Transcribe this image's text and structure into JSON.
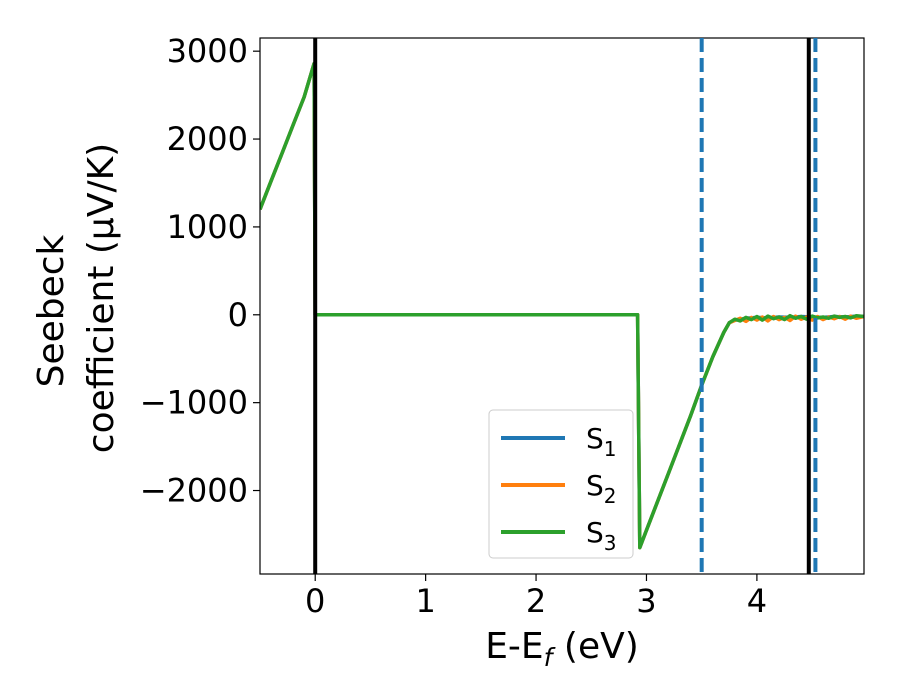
{
  "chart_data": {
    "type": "line",
    "title": "",
    "xlabel_parts": {
      "main": "E-E",
      "sub": "f",
      "tail": " (eV)"
    },
    "ylabel_lines": [
      "Seebeck",
      "coefficient  (μV/K)"
    ],
    "xlim": [
      -0.5,
      4.97
    ],
    "ylim": [
      -2950,
      3150
    ],
    "xticks": [
      0,
      1,
      2,
      3,
      4
    ],
    "xtick_labels": [
      "0",
      "1",
      "2",
      "3",
      "4"
    ],
    "yticks": [
      -2000,
      -1000,
      0,
      1000,
      2000,
      3000
    ],
    "ytick_labels": [
      "−2000",
      "−1000",
      "0",
      "1000",
      "2000",
      "3000"
    ],
    "grid": false,
    "legend_position": "lower-right",
    "series": [
      {
        "name": "S",
        "name_sub": "1",
        "color": "#1f77b4",
        "x": [
          -0.5,
          -0.4,
          -0.3,
          -0.2,
          -0.1,
          -0.01,
          0.0,
          0.2,
          1.0,
          2.0,
          2.92,
          2.94,
          3.0,
          3.2,
          3.4,
          3.5,
          3.6,
          3.7,
          3.75,
          3.8,
          3.9,
          4.0,
          4.1,
          4.2,
          4.3,
          4.4,
          4.5,
          4.6,
          4.7,
          4.8,
          4.9,
          4.97
        ],
        "y": [
          1200,
          1520,
          1840,
          2160,
          2480,
          2860,
          0,
          0,
          0,
          0,
          0,
          -2650,
          -2450,
          -1800,
          -1150,
          -800,
          -480,
          -200,
          -90,
          -60,
          -40,
          -30,
          -35,
          -25,
          -30,
          -20,
          -25,
          -30,
          -20,
          -25,
          -15,
          -20
        ]
      },
      {
        "name": "S",
        "name_sub": "2",
        "color": "#ff7f0e",
        "x": [
          -0.5,
          -0.4,
          -0.3,
          -0.2,
          -0.1,
          -0.01,
          0.0,
          0.2,
          1.0,
          2.0,
          2.92,
          2.94,
          3.0,
          3.2,
          3.4,
          3.5,
          3.6,
          3.7,
          3.75,
          3.8,
          3.85,
          3.9,
          3.95,
          4.0,
          4.05,
          4.1,
          4.15,
          4.2,
          4.25,
          4.3,
          4.35,
          4.4,
          4.45,
          4.5,
          4.55,
          4.6,
          4.65,
          4.7,
          4.75,
          4.8,
          4.85,
          4.9,
          4.97
        ],
        "y": [
          1200,
          1520,
          1840,
          2160,
          2480,
          2860,
          0,
          0,
          0,
          0,
          0,
          -2650,
          -2450,
          -1800,
          -1150,
          -800,
          -480,
          -200,
          -90,
          -65,
          -40,
          -75,
          -30,
          -60,
          -25,
          -70,
          -20,
          -55,
          -30,
          -65,
          -15,
          -50,
          -25,
          -60,
          -20,
          -55,
          -25,
          -45,
          -20,
          -50,
          -15,
          -40,
          -20
        ]
      },
      {
        "name": "S",
        "name_sub": "3",
        "color": "#2ca02c",
        "x": [
          -0.5,
          -0.4,
          -0.3,
          -0.2,
          -0.1,
          -0.01,
          0.0,
          0.2,
          1.0,
          2.0,
          2.92,
          2.94,
          3.0,
          3.2,
          3.4,
          3.5,
          3.6,
          3.7,
          3.75,
          3.8,
          3.85,
          3.9,
          3.95,
          4.0,
          4.05,
          4.1,
          4.15,
          4.2,
          4.25,
          4.3,
          4.35,
          4.4,
          4.45,
          4.5,
          4.55,
          4.6,
          4.65,
          4.7,
          4.75,
          4.8,
          4.85,
          4.9,
          4.97
        ],
        "y": [
          1200,
          1520,
          1840,
          2160,
          2480,
          2860,
          0,
          0,
          0,
          0,
          0,
          -2650,
          -2450,
          -1800,
          -1150,
          -800,
          -480,
          -200,
          -90,
          -50,
          -70,
          -30,
          -55,
          -20,
          -60,
          -15,
          -45,
          -25,
          -55,
          -10,
          -40,
          -20,
          -50,
          -15,
          -35,
          -25,
          -40,
          -15,
          -30,
          -20,
          -35,
          -10,
          -20
        ]
      }
    ],
    "vertical_lines": [
      {
        "x": 0.0,
        "style": "solid",
        "color": "#000000"
      },
      {
        "x": 4.47,
        "style": "solid",
        "color": "#000000"
      },
      {
        "x": 3.5,
        "style": "dashed",
        "color": "#1f77b4"
      },
      {
        "x": 4.53,
        "style": "dashed",
        "color": "#1f77b4"
      }
    ]
  }
}
